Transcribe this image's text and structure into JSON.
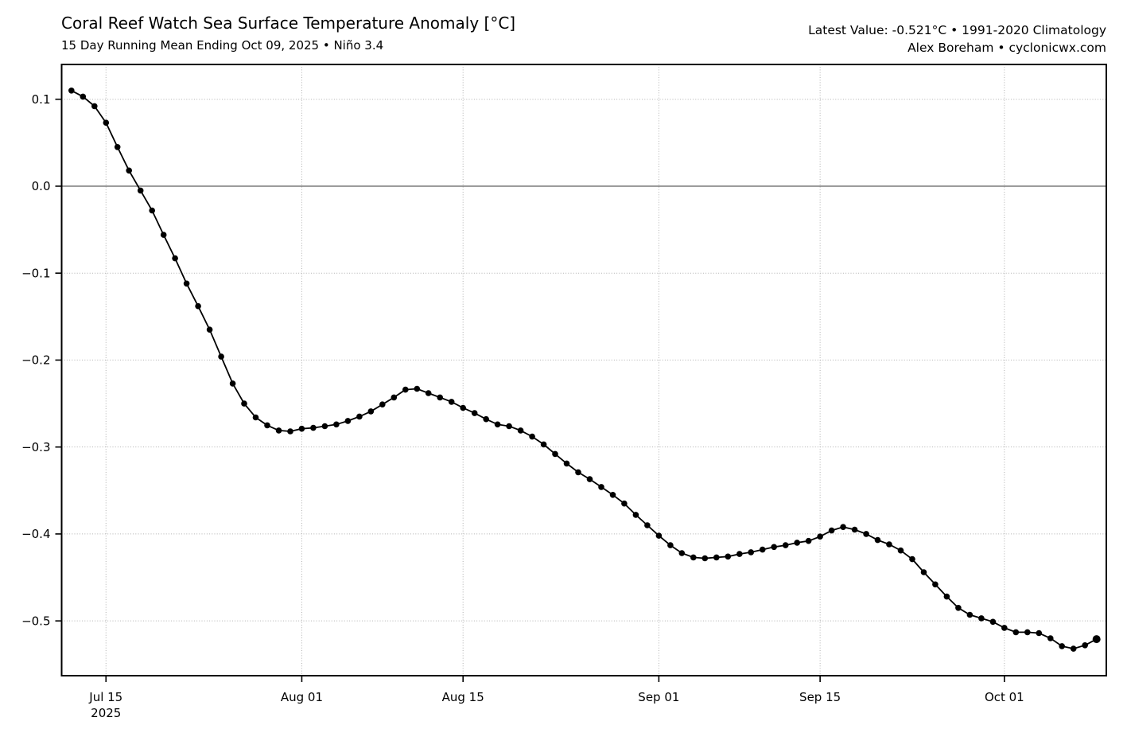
{
  "header": {
    "title": "Coral Reef Watch Sea Surface Temperature Anomaly [°C]",
    "subtitle": "15 Day Running Mean Ending Oct 09, 2025 • Niño 3.4",
    "meta_line1": "Latest Value: -0.521°C • 1991-2020 Climatology",
    "meta_line2": "Alex Boreham • cyclonicwx.com"
  },
  "chart_data": {
    "type": "line",
    "title": "Coral Reef Watch Sea Surface Temperature Anomaly [°C]",
    "subtitle": "15 Day Running Mean Ending Oct 09, 2025 • Niño 3.4",
    "annotation_latest_value": "-0.521°C",
    "climatology": "1991-2020 Climatology",
    "region": "Niño 3.4",
    "xlabel": "",
    "ylabel": "",
    "grid": {
      "style": "dotted",
      "color": "#b0b0b0"
    },
    "zero_line": {
      "value": 0.0,
      "color": "#808080"
    },
    "frame_color": "#000000",
    "ylim": [
      -0.563,
      0.14
    ],
    "xlim_days": [
      -0.85,
      89.85
    ],
    "y_ticks": [
      {
        "value": 0.1,
        "label": "0.1"
      },
      {
        "value": 0.0,
        "label": "0.0"
      },
      {
        "value": -0.1,
        "label": "−0.1"
      },
      {
        "value": -0.2,
        "label": "−0.2"
      },
      {
        "value": -0.3,
        "label": "−0.3"
      },
      {
        "value": -0.4,
        "label": "−0.4"
      },
      {
        "value": -0.5,
        "label": "−0.5"
      }
    ],
    "x_ticks": [
      {
        "label": "Jul 15",
        "sublabel": "2025",
        "day_index": 3
      },
      {
        "label": "Aug 01",
        "sublabel": "",
        "day_index": 20
      },
      {
        "label": "Aug 15",
        "sublabel": "",
        "day_index": 34
      },
      {
        "label": "Sep 01",
        "sublabel": "",
        "day_index": 51
      },
      {
        "label": "Sep 15",
        "sublabel": "",
        "day_index": 65
      },
      {
        "label": "Oct 01",
        "sublabel": "",
        "day_index": 81
      }
    ],
    "series": [
      {
        "name": "SST anomaly 15-day running mean",
        "color": "#000000",
        "marker": "circle",
        "emphasize_last_point": true,
        "dates": [
          "2025-07-12",
          "2025-07-13",
          "2025-07-14",
          "2025-07-15",
          "2025-07-16",
          "2025-07-17",
          "2025-07-18",
          "2025-07-19",
          "2025-07-20",
          "2025-07-21",
          "2025-07-22",
          "2025-07-23",
          "2025-07-24",
          "2025-07-25",
          "2025-07-26",
          "2025-07-27",
          "2025-07-28",
          "2025-07-29",
          "2025-07-30",
          "2025-07-31",
          "2025-08-01",
          "2025-08-02",
          "2025-08-03",
          "2025-08-04",
          "2025-08-05",
          "2025-08-06",
          "2025-08-07",
          "2025-08-08",
          "2025-08-09",
          "2025-08-10",
          "2025-08-11",
          "2025-08-12",
          "2025-08-13",
          "2025-08-14",
          "2025-08-15",
          "2025-08-16",
          "2025-08-17",
          "2025-08-18",
          "2025-08-19",
          "2025-08-20",
          "2025-08-21",
          "2025-08-22",
          "2025-08-23",
          "2025-08-24",
          "2025-08-25",
          "2025-08-26",
          "2025-08-27",
          "2025-08-28",
          "2025-08-29",
          "2025-08-30",
          "2025-08-31",
          "2025-09-01",
          "2025-09-02",
          "2025-09-03",
          "2025-09-04",
          "2025-09-05",
          "2025-09-06",
          "2025-09-07",
          "2025-09-08",
          "2025-09-09",
          "2025-09-10",
          "2025-09-11",
          "2025-09-12",
          "2025-09-13",
          "2025-09-14",
          "2025-09-15",
          "2025-09-16",
          "2025-09-17",
          "2025-09-18",
          "2025-09-19",
          "2025-09-20",
          "2025-09-21",
          "2025-09-22",
          "2025-09-23",
          "2025-09-24",
          "2025-09-25",
          "2025-09-26",
          "2025-09-27",
          "2025-09-28",
          "2025-09-29",
          "2025-09-30",
          "2025-10-01",
          "2025-10-02",
          "2025-10-03",
          "2025-10-04",
          "2025-10-05",
          "2025-10-06",
          "2025-10-07",
          "2025-10-08",
          "2025-10-09"
        ],
        "values": [
          0.11,
          0.103,
          0.092,
          0.073,
          0.045,
          0.018,
          -0.005,
          -0.028,
          -0.056,
          -0.083,
          -0.112,
          -0.138,
          -0.165,
          -0.196,
          -0.227,
          -0.25,
          -0.266,
          -0.275,
          -0.281,
          -0.282,
          -0.279,
          -0.278,
          -0.276,
          -0.274,
          -0.27,
          -0.265,
          -0.259,
          -0.251,
          -0.243,
          -0.234,
          -0.233,
          -0.238,
          -0.243,
          -0.248,
          -0.255,
          -0.261,
          -0.268,
          -0.274,
          -0.276,
          -0.281,
          -0.288,
          -0.297,
          -0.308,
          -0.319,
          -0.329,
          -0.337,
          -0.346,
          -0.355,
          -0.365,
          -0.378,
          -0.39,
          -0.402,
          -0.413,
          -0.422,
          -0.427,
          -0.428,
          -0.427,
          -0.426,
          -0.423,
          -0.421,
          -0.418,
          -0.415,
          -0.413,
          -0.41,
          -0.408,
          -0.403,
          -0.396,
          -0.392,
          -0.395,
          -0.4,
          -0.407,
          -0.412,
          -0.419,
          -0.429,
          -0.444,
          -0.458,
          -0.472,
          -0.485,
          -0.493,
          -0.497,
          -0.501,
          -0.508,
          -0.513,
          -0.513,
          -0.514,
          -0.52,
          -0.529,
          -0.532,
          -0.528,
          -0.521
        ]
      }
    ]
  }
}
